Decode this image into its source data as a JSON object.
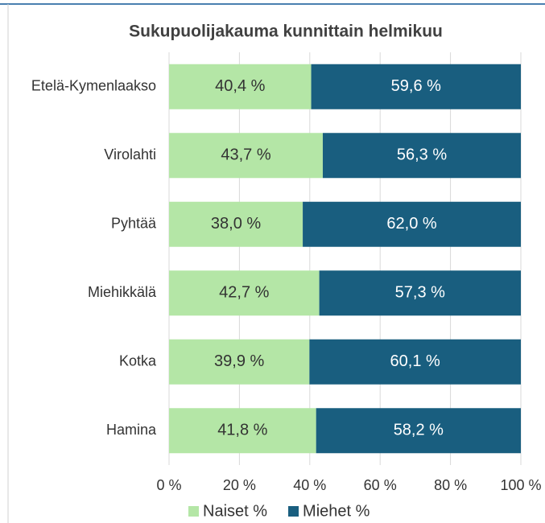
{
  "chart_data": {
    "type": "bar",
    "orientation": "horizontal",
    "stacked": true,
    "title": "Sukupuolijakauma kunnittain helmikuu",
    "categories": [
      "Etelä-Kymenlaakso",
      "Virolahti",
      "Pyhtää",
      "Miehikkälä",
      "Kotka",
      "Hamina"
    ],
    "series": [
      {
        "name": "Naiset %",
        "color": "#b4e6a6",
        "label_color": "#333333",
        "values": [
          40.4,
          43.7,
          38.0,
          42.7,
          39.9,
          41.8
        ],
        "value_labels": [
          "40,4 %",
          "43,7 %",
          "38,0 %",
          "42,7 %",
          "39,9 %",
          "41,8 %"
        ]
      },
      {
        "name": "Miehet %",
        "color": "#195e7f",
        "label_color": "#ffffff",
        "values": [
          59.6,
          56.3,
          62.0,
          57.3,
          60.1,
          58.2
        ],
        "value_labels": [
          "59,6 %",
          "56,3 %",
          "62,0 %",
          "57,3 %",
          "60,1 %",
          "58,2 %"
        ]
      }
    ],
    "xlim": [
      0,
      100
    ],
    "xticks": [
      {
        "value": 0,
        "label": "0 %"
      },
      {
        "value": 20,
        "label": "20 %"
      },
      {
        "value": 40,
        "label": "40 %"
      },
      {
        "value": 60,
        "label": "60 %"
      },
      {
        "value": 80,
        "label": "80 %"
      },
      {
        "value": 100,
        "label": "100 %"
      }
    ],
    "grid": true,
    "legend": "bottom"
  }
}
